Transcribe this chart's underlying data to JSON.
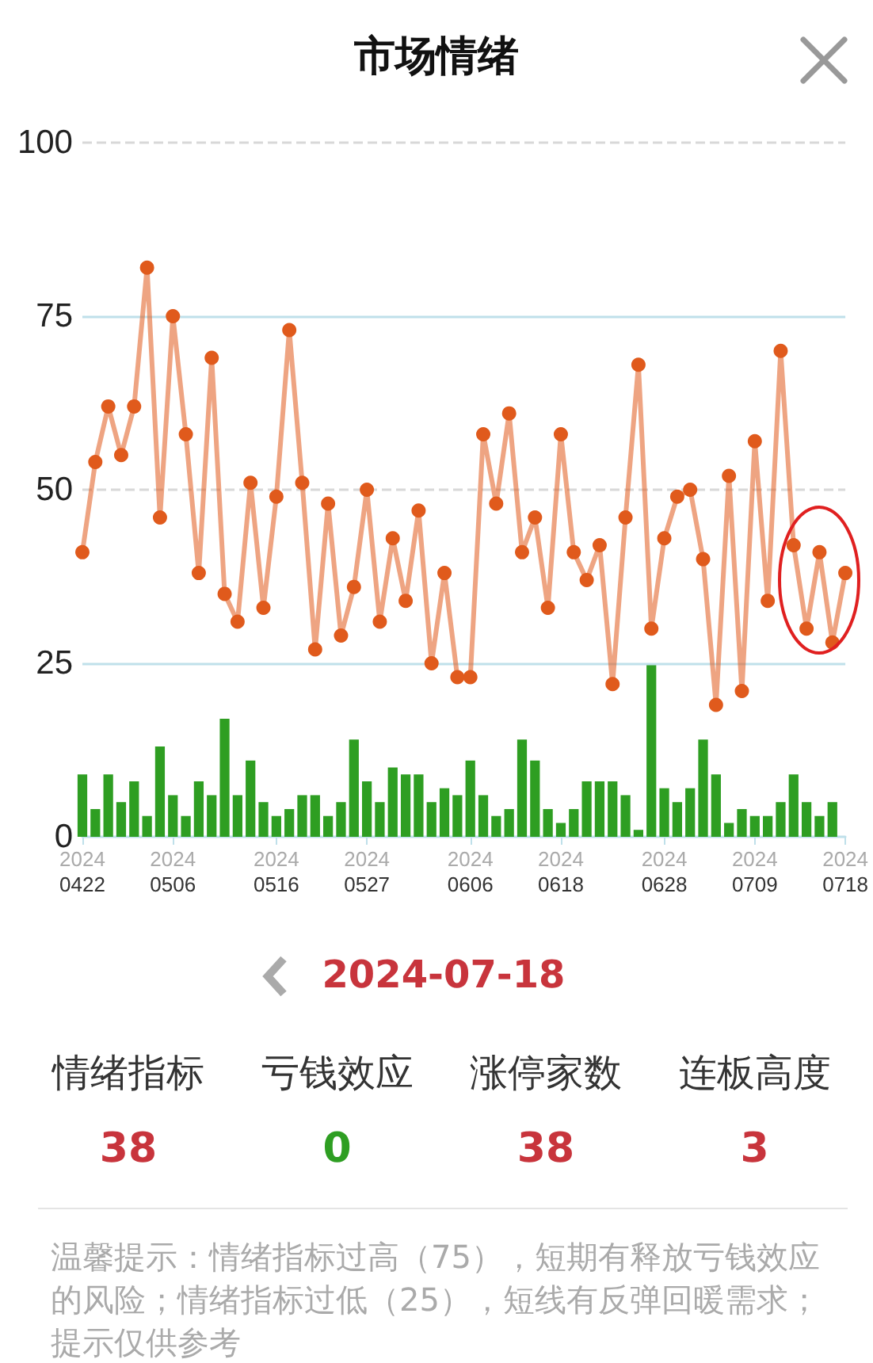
{
  "chart_data": [
    {
      "type": "line",
      "title": "市场情绪",
      "categories": [
        "2024\n0422",
        null,
        null,
        null,
        null,
        null,
        null,
        "2024\n0506",
        null,
        null,
        null,
        null,
        null,
        null,
        null,
        "2024\n0516",
        null,
        null,
        null,
        null,
        null,
        null,
        "2024\n0527",
        null,
        null,
        null,
        null,
        null,
        null,
        null,
        "2024\n0606",
        null,
        null,
        null,
        null,
        null,
        null,
        "2024\n0618",
        null,
        null,
        null,
        null,
        null,
        null,
        null,
        "2024\n0628",
        null,
        null,
        null,
        null,
        null,
        null,
        "2024\n0709",
        null,
        null,
        null,
        null,
        null,
        null,
        "2024\n0718"
      ],
      "series": [
        {
          "type": "line",
          "color": "#e05a1c",
          "values": [
            41,
            54,
            62,
            55,
            62,
            82,
            46,
            75,
            58,
            38,
            69,
            35,
            31,
            51,
            33,
            49,
            73,
            51,
            27,
            48,
            29,
            36,
            50,
            31,
            43,
            34,
            47,
            25,
            38,
            23,
            23,
            58,
            48,
            61,
            41,
            46,
            33,
            58,
            41,
            37,
            42,
            22,
            46,
            68,
            30,
            43,
            49,
            50,
            40,
            19,
            52,
            21,
            57,
            34,
            70,
            42,
            30,
            41,
            28,
            38
          ]
        },
        {
          "type": "bar",
          "color": "#2e9e22",
          "values": [
            9,
            4,
            9,
            5,
            8,
            3,
            13,
            6,
            3,
            8,
            6,
            17,
            6,
            11,
            5,
            3,
            4,
            6,
            6,
            3,
            5,
            14,
            8,
            5,
            10,
            9,
            9,
            5,
            7,
            6,
            11,
            6,
            3,
            4,
            14,
            11,
            4,
            2,
            4,
            8,
            8,
            8,
            6,
            1,
            25,
            7,
            5,
            7,
            14,
            9,
            2,
            4,
            3,
            3,
            5,
            9,
            5,
            3,
            5,
            0
          ]
        }
      ],
      "ylim": [
        0,
        100
      ],
      "yticks": [
        0,
        25,
        50,
        75,
        100
      ],
      "marker": "circle",
      "ref_lines": [
        {
          "axis": "y",
          "value": 25,
          "color": "#bfe0ea"
        },
        {
          "axis": "y",
          "value": 50,
          "color": "#d8d8d8",
          "line_style": "dashed"
        },
        {
          "axis": "y",
          "value": 75,
          "color": "#bfe0ea"
        },
        {
          "axis": "y",
          "value": 100,
          "color": "#d8d8d8",
          "line_style": "dashed"
        }
      ]
    },
    {
      "type": "other",
      "title": "2024-07-18",
      "categories": [
        "情绪指标",
        "亏钱效应",
        "涨停家数",
        "连板高度"
      ],
      "values": [
        38,
        0,
        38,
        3
      ],
      "colors": [
        "#c8343c",
        "#2e9e22",
        "#c8343c",
        "#c8343c"
      ],
      "data_labels": true,
      "annotations": [
        "温馨提示：情绪指标过高（75），短期有释放亏钱效应的风险；情绪指标过低（25），短线有反弹回暖需求；提示仅供参考"
      ]
    }
  ]
}
